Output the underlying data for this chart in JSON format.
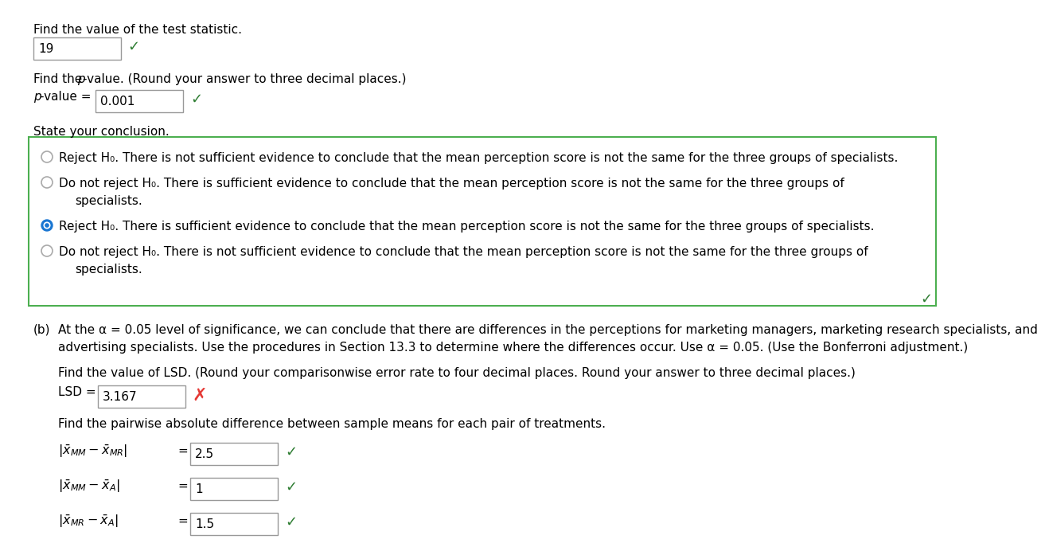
{
  "bg_color": "#ffffff",
  "test_stat_value": "19",
  "pvalue_value": "0.001",
  "radio_options": [
    {
      "selected": false,
      "lines": [
        "Reject H₀. There is not sufficient evidence to conclude that the mean perception score is not the same for the three groups of specialists."
      ]
    },
    {
      "selected": false,
      "lines": [
        "Do not reject H₀. There is sufficient evidence to conclude that the mean perception score is not the same for the three groups of",
        "specialists."
      ]
    },
    {
      "selected": true,
      "lines": [
        "Reject H₀. There is sufficient evidence to conclude that the mean perception score is not the same for the three groups of specialists."
      ]
    },
    {
      "selected": false,
      "lines": [
        "Do not reject H₀. There is not sufficient evidence to conclude that the mean perception score is not the same for the three groups of",
        "specialists."
      ]
    }
  ],
  "part_b_lines": [
    "At the α = 0.05 level of significance, we can conclude that there are differences in the perceptions for marketing managers, marketing research specialists, and",
    "advertising specialists. Use the procedures in Section 13.3 to determine where the differences occur. Use α = 0.05. (Use the Bonferroni adjustment.)"
  ],
  "lsd_label": "Find the value of LSD. (Round your comparisonwise error rate to four decimal places. Round your answer to three decimal places.)",
  "lsd_value": "3.167",
  "lsd_correct": false,
  "pairwise_label": "Find the pairwise absolute difference between sample means for each pair of treatments.",
  "pairs": [
    {
      "value": "2.5",
      "correct": true
    },
    {
      "value": "1",
      "correct": true
    },
    {
      "value": "1.5",
      "correct": true
    }
  ],
  "green": "#2e7d32",
  "red": "#e53935",
  "box_border": "#4caf50",
  "blue_dot": "#1976d2",
  "gray_dot": "#aaaaaa",
  "input_border": "#999999",
  "fs": 11.0,
  "fs_math": 11.5
}
